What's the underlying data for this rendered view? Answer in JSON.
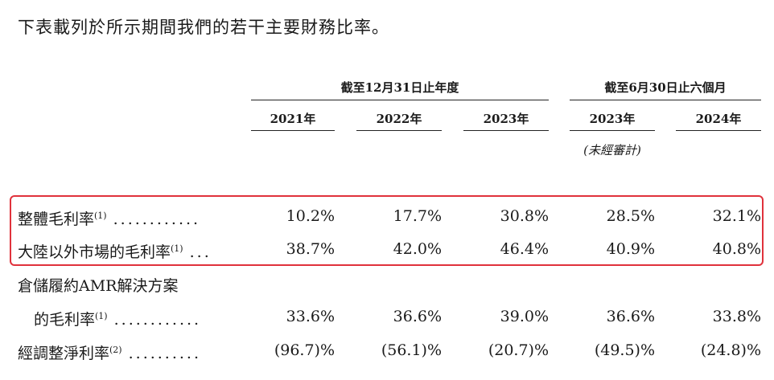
{
  "intro": "下表載列於所示期間我們的若干主要財務比率。",
  "groups": {
    "annual": "截至12月31日止年度",
    "interim": "截至6月30日止六個月"
  },
  "years": [
    "2021年",
    "2022年",
    "2023年",
    "2023年",
    "2024年"
  ],
  "unaudited_note": "(未經審計)",
  "rows": [
    {
      "label": "整體毛利率",
      "note": "(1)",
      "dots": "............",
      "values": [
        "10.2%",
        "17.7%",
        "30.8%",
        "28.5%",
        "32.1%"
      ]
    },
    {
      "label": "大陸以外市場的毛利率",
      "note": "(1)",
      "dots": "...",
      "values": [
        "38.7%",
        "42.0%",
        "46.4%",
        "40.9%",
        "40.8%"
      ]
    },
    {
      "label": "倉儲履約AMR解決方案",
      "note": "",
      "dots": "",
      "values": []
    },
    {
      "label": "的毛利率",
      "note": "(1)",
      "dots": "............",
      "values": [
        "33.6%",
        "36.6%",
        "39.0%",
        "36.6%",
        "33.8%"
      ]
    },
    {
      "label": "經調整淨利率",
      "note": "(2)",
      "dots": "..........",
      "values": [
        "(96.7)%",
        "(56.1)%",
        "(20.7)%",
        "(49.5)%",
        "(24.8)%"
      ]
    }
  ]
}
